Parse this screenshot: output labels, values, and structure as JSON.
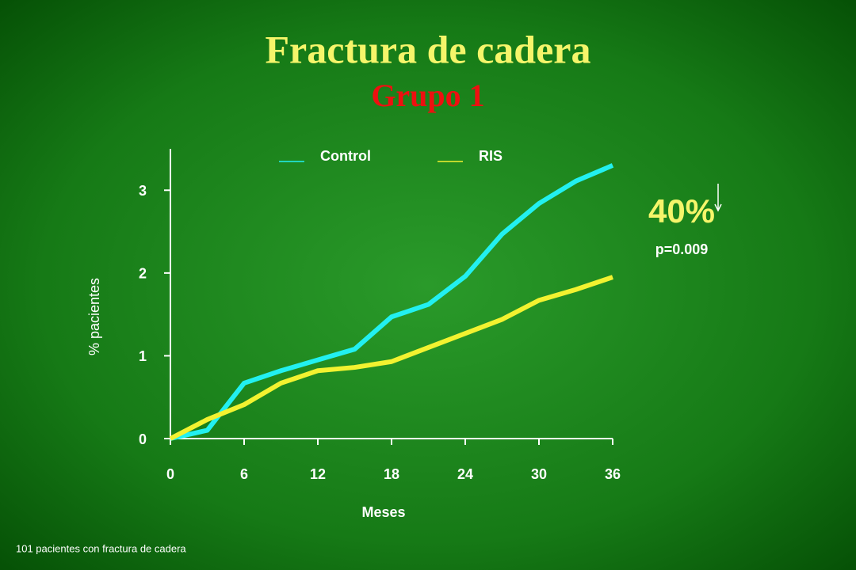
{
  "chart_data": {
    "type": "line",
    "title": "Fractura de cadera",
    "subtitle": "Grupo 1",
    "xlabel": "Meses",
    "ylabel": "% pacientes",
    "x": [
      0,
      3,
      6,
      9,
      12,
      15,
      18,
      21,
      24,
      27,
      30,
      33,
      36
    ],
    "series": [
      {
        "name": "Control",
        "color": "#22f0f0",
        "values": [
          0,
          0.1,
          0.67,
          0.82,
          0.95,
          1.08,
          1.47,
          1.62,
          1.96,
          2.47,
          2.84,
          3.11,
          3.3
        ]
      },
      {
        "name": "RIS",
        "color": "#f2f230",
        "values": [
          0,
          0.23,
          0.41,
          0.67,
          0.82,
          0.86,
          0.93,
          1.1,
          1.27,
          1.44,
          1.67,
          1.8,
          1.95
        ]
      }
    ],
    "xlim": [
      0,
      36
    ],
    "xticks": [
      0,
      6,
      12,
      18,
      24,
      30,
      36
    ],
    "ylim": [
      0,
      3.5
    ],
    "yticks": [
      0,
      1,
      2,
      3
    ],
    "annotations": [
      "40%",
      "p=0.009"
    ],
    "footnote": "101 pacientes con fractura de cadera"
  }
}
